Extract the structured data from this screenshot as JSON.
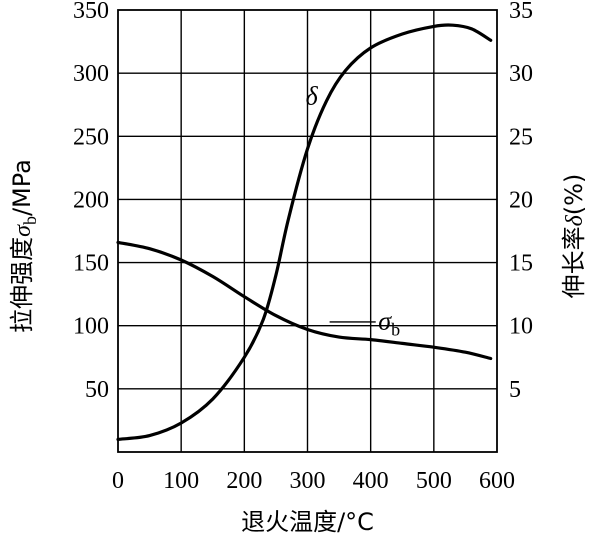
{
  "chart_data": {
    "type": "line",
    "xlabel": "退火温度/°C",
    "xlim": [
      0,
      600
    ],
    "xticks": [
      0,
      100,
      200,
      300,
      400,
      500,
      600
    ],
    "ylabel_left": {
      "prefix": "拉伸强度",
      "symbol": "σ",
      "sub": "b",
      "suffix": "/MPa"
    },
    "ylim_left": [
      0,
      350
    ],
    "yticks_left": [
      50,
      100,
      150,
      200,
      250,
      300,
      350
    ],
    "ylabel_right": {
      "prefix": "伸长率",
      "symbol": "δ",
      "suffix": "(%)"
    },
    "ylim_right": [
      0,
      35
    ],
    "yticks_right": [
      5,
      10,
      15,
      20,
      25,
      30,
      35
    ],
    "grid": true,
    "series": [
      {
        "axis": "left",
        "label": {
          "symbol": "σ",
          "sub": "b"
        },
        "x": [
          0,
          50,
          100,
          150,
          200,
          250,
          300,
          350,
          400,
          450,
          500,
          550,
          590
        ],
        "y": [
          166,
          161,
          152,
          139,
          123,
          108,
          97,
          91,
          89,
          86,
          83,
          79,
          74
        ]
      },
      {
        "axis": "right",
        "label": {
          "symbol": "δ"
        },
        "x": [
          0,
          50,
          100,
          150,
          200,
          230,
          250,
          270,
          300,
          330,
          360,
          400,
          450,
          500,
          530,
          560,
          590
        ],
        "y": [
          1,
          1.3,
          2.3,
          4.2,
          7.5,
          10.5,
          14,
          18.5,
          24,
          27.8,
          30.2,
          32,
          33.1,
          33.7,
          33.8,
          33.5,
          32.6
        ]
      }
    ]
  }
}
